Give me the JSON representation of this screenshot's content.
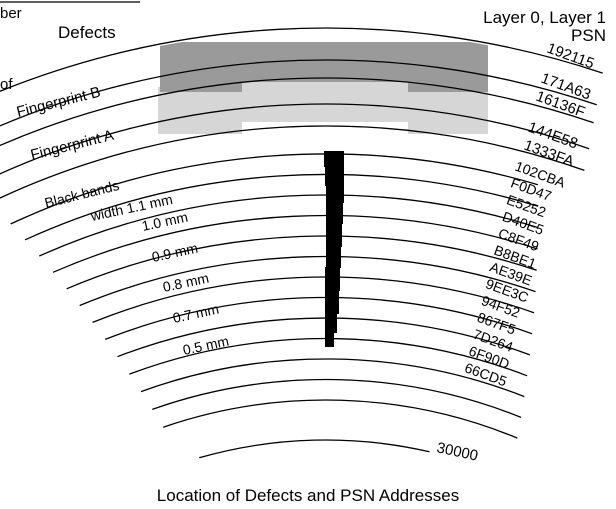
{
  "labels": {
    "top_left_fragment": "ber",
    "left_fragment": "of",
    "defects": "Defects",
    "fingerprint_b": "Fingerprint B",
    "fingerprint_a": "Fingerprint A",
    "black_bands": "Black bands",
    "layers": "Layer 0, Layer 1",
    "psn": "PSN",
    "bottom_value": "30000",
    "caption": "Location of Defects and PSN Addresses"
  },
  "psn_top": [
    "192115",
    "171A63",
    "16136F",
    "144E58",
    "1333FA"
  ],
  "psn_bands": [
    "102CBA",
    "F0D47",
    "E5252",
    "D40E5",
    "C8F49",
    "B8BE1",
    "AE39E",
    "9EE3C",
    "94F52",
    "867F5",
    "7D264",
    "6F90D",
    "66CD5"
  ],
  "band_widths": [
    "width 1.1 mm",
    "1.0 mm",
    "0.9 mm",
    "0.8 mm",
    "0.7 mm",
    "0.5 mm"
  ],
  "colors": {
    "fingerprint_b": "#9a9a9a",
    "fingerprint_a": "#d6d6d6",
    "defect_band": "#000000",
    "line": "#000000"
  }
}
